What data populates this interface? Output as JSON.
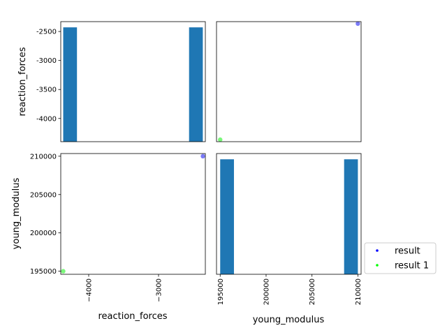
{
  "chart_data": {
    "type": "scatter",
    "variables": [
      "reaction_forces",
      "young_modulus"
    ],
    "axis_labels": {
      "x": [
        "reaction_forces",
        "young_modulus"
      ],
      "y": [
        "reaction_forces",
        "young_modulus"
      ]
    },
    "ranges": {
      "reaction_forces": [
        -4400,
        -2330
      ],
      "young_modulus": [
        194600,
        210350
      ]
    },
    "ticks": {
      "reaction_forces_y": [
        {
          "value": -2500,
          "label": "-2500"
        },
        {
          "value": -3000,
          "label": "-3000"
        },
        {
          "value": -3500,
          "label": "-3500"
        },
        {
          "value": -4000,
          "label": "-4000"
        }
      ],
      "reaction_forces_x": [
        {
          "value": -4000,
          "label": "−4000"
        },
        {
          "value": -3000,
          "label": "−3000"
        }
      ],
      "young_modulus_y": [
        {
          "value": 210000,
          "label": "210000"
        },
        {
          "value": 205000,
          "label": "205000"
        },
        {
          "value": 200000,
          "label": "200000"
        },
        {
          "value": 195000,
          "label": "195000"
        }
      ],
      "young_modulus_x": [
        {
          "value": 195000,
          "label": "195000"
        },
        {
          "value": 200000,
          "label": "200000"
        },
        {
          "value": 205000,
          "label": "205000"
        },
        {
          "value": 210000,
          "label": "210000"
        }
      ]
    },
    "histograms": {
      "reaction_forces": {
        "bins": [
          {
            "x0": -4365,
            "x1": -4168,
            "count": 1
          },
          {
            "x0": -2563,
            "x1": -2366,
            "count": 1
          }
        ],
        "count_max": 1.05
      },
      "young_modulus": {
        "bins": [
          {
            "x0": 195000,
            "x1": 196500,
            "count": 1
          },
          {
            "x0": 208500,
            "x1": 210000,
            "count": 1
          }
        ],
        "count_max": 1.05
      }
    },
    "series": [
      {
        "name": "result",
        "color": "#7b7bf7",
        "legend_color": "#0000ff",
        "points": [
          {
            "reaction_forces": -2365,
            "young_modulus": 210000
          }
        ]
      },
      {
        "name": "result 1",
        "color": "#7bf77b",
        "legend_color": "#00ff00",
        "points": [
          {
            "reaction_forces": -4365,
            "young_modulus": 195000
          }
        ]
      }
    ],
    "bar_color": "#1f77b4",
    "grid": false,
    "legend_position": "lower-right"
  }
}
